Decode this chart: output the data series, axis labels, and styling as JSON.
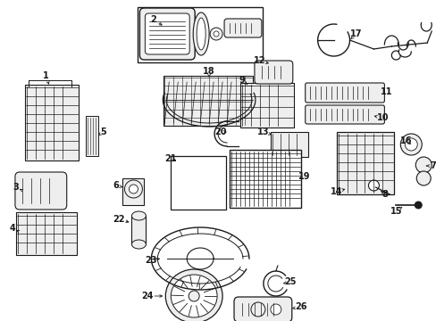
{
  "bg_color": "#ffffff",
  "line_color": "#1a1a1a",
  "gray_fill": "#d8d8d8",
  "light_fill": "#eeeeee",
  "fig_w": 4.89,
  "fig_h": 3.6,
  "dpi": 100
}
